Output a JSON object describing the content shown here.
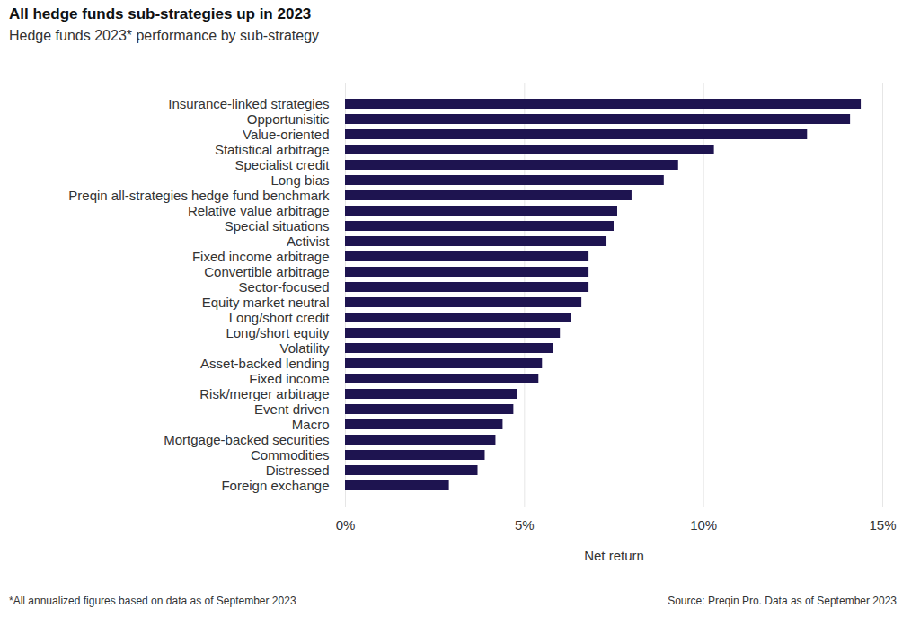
{
  "chart_data": {
    "type": "bar",
    "orientation": "horizontal",
    "title": "All hedge funds sub-strategies up in 2023",
    "subtitle": "Hedge funds 2023* performance by sub-strategy",
    "x_label": "Net return",
    "caption": "*All annualized figures based on data as of September 2023",
    "source": "Source: Preqin Pro. Data as of September 2023",
    "categories": [
      "Insurance-linked strategies",
      "Opportunisitic",
      "Value-oriented",
      "Statistical arbitrage",
      "Specialist credit",
      "Long bias",
      "Preqin all-strategies hedge fund benchmark",
      "Relative value arbitrage",
      "Special situations",
      "Activist",
      "Fixed income arbitrage",
      "Convertible arbitrage",
      "Sector-focused",
      "Equity market neutral",
      "Long/short credit",
      "Long/short equity",
      "Volatility",
      "Asset-backed lending",
      "Fixed income",
      "Risk/merger arbitrage",
      "Event driven",
      "Macro",
      "Mortgage-backed securities",
      "Commodities",
      "Distressed",
      "Foreign exchange"
    ],
    "values": [
      14.4,
      14.1,
      12.9,
      10.3,
      9.3,
      8.9,
      8.0,
      7.6,
      7.5,
      7.3,
      6.8,
      6.8,
      6.8,
      6.6,
      6.3,
      6.0,
      5.8,
      5.5,
      5.4,
      4.8,
      4.7,
      4.4,
      4.2,
      3.9,
      3.7,
      2.9
    ],
    "color": "#1e1450",
    "xlim": [
      0,
      15
    ],
    "xticks": [
      {
        "value": 0,
        "label": "0%"
      },
      {
        "value": 5,
        "label": "5%"
      },
      {
        "value": 10,
        "label": "10%"
      },
      {
        "value": 15,
        "label": "15%"
      }
    ],
    "grid": true
  }
}
